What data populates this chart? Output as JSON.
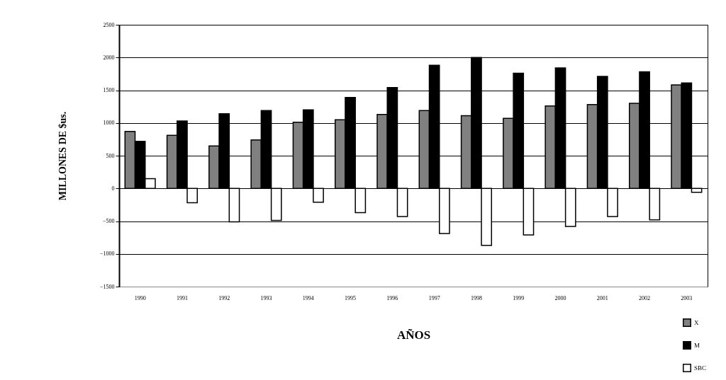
{
  "chart_data": {
    "type": "bar",
    "xlabel": "AÑOS",
    "ylabel": "MILLONES DE $us.",
    "categories": [
      "1990",
      "1991",
      "1992",
      "1993",
      "1994",
      "1995",
      "1996",
      "1997",
      "1998",
      "1999",
      "2000",
      "2001",
      "2002",
      "2003"
    ],
    "series": [
      {
        "name": "X",
        "color": "#808080",
        "values": [
          870,
          810,
          650,
          740,
          1010,
          1050,
          1130,
          1190,
          1110,
          1070,
          1260,
          1280,
          1300,
          1580
        ]
      },
      {
        "name": "M",
        "color": "#000000",
        "values": [
          720,
          1030,
          1140,
          1190,
          1200,
          1390,
          1540,
          1880,
          2000,
          1760,
          1840,
          1710,
          1780,
          1610
        ]
      },
      {
        "name": "SBC",
        "color": "#ffffff",
        "values": [
          150,
          -220,
          -510,
          -490,
          -210,
          -370,
          -430,
          -690,
          -870,
          -710,
          -580,
          -430,
          -480,
          -60
        ]
      }
    ],
    "ylim": [
      -1500,
      2500
    ],
    "yticks": [
      -1500,
      -1000,
      -500,
      0,
      500,
      1000,
      1500,
      2000,
      2500
    ],
    "grid": "y",
    "legend": "bottom right"
  }
}
